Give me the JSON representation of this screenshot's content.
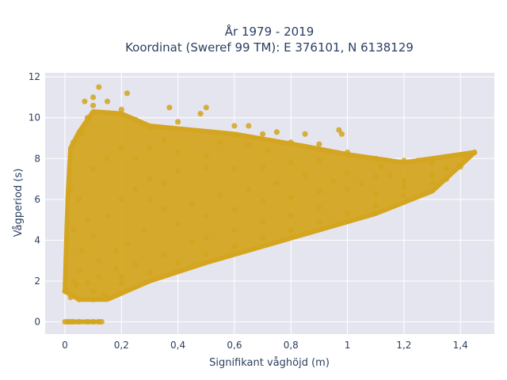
{
  "chart_data": {
    "type": "scatter",
    "title_line1": "År 1979 - 2019",
    "title_line2": "Koordinat (Sweref 99 TM): E 376101, N 6138129",
    "xlabel": "Signifikant våghöjd (m)",
    "ylabel": "Vågperiod (s)",
    "xlim": [
      -0.07,
      1.52
    ],
    "ylim": [
      -0.6,
      12.2
    ],
    "x_ticks": [
      0,
      0.2,
      0.4,
      0.6,
      0.8,
      1,
      1.2,
      1.4
    ],
    "x_tick_labels": [
      "0",
      "0,2",
      "0,4",
      "0,6",
      "0,8",
      "1",
      "1,2",
      "1,4"
    ],
    "y_ticks": [
      0,
      2,
      4,
      6,
      8,
      10,
      12
    ],
    "y_tick_labels": [
      "0",
      "2",
      "4",
      "6",
      "8",
      "10",
      "12"
    ],
    "grid": true,
    "legend": "none",
    "marker_color": "#d4a520",
    "plot_bg": "#e5e5ef",
    "series": [
      {
        "points": [
          [
            0.0,
            0.0
          ],
          [
            0.01,
            0.0
          ],
          [
            0.02,
            0.0
          ],
          [
            0.03,
            0.0
          ],
          [
            0.05,
            0.0
          ],
          [
            0.08,
            0.0
          ],
          [
            0.1,
            0.0
          ],
          [
            0.12,
            0.0
          ],
          [
            0.13,
            0.0
          ],
          [
            0.0,
            1.5
          ],
          [
            0.02,
            1.2
          ],
          [
            0.03,
            2.0
          ],
          [
            0.05,
            1.1
          ],
          [
            0.1,
            1.1
          ],
          [
            0.15,
            1.2
          ],
          [
            0.2,
            1.9
          ],
          [
            0.3,
            2.4
          ],
          [
            0.4,
            2.9
          ],
          [
            0.5,
            3.3
          ],
          [
            0.6,
            3.7
          ],
          [
            0.7,
            4.1
          ],
          [
            0.8,
            4.5
          ],
          [
            0.9,
            4.9
          ],
          [
            1.0,
            5.3
          ],
          [
            1.1,
            5.7
          ],
          [
            1.2,
            6.2
          ],
          [
            1.3,
            6.8
          ],
          [
            1.4,
            7.6
          ],
          [
            1.45,
            8.3
          ],
          [
            1.42,
            8.1
          ],
          [
            1.35,
            7.5
          ],
          [
            1.3,
            7.8
          ],
          [
            1.2,
            7.9
          ],
          [
            1.1,
            8.0
          ],
          [
            1.0,
            8.3
          ],
          [
            0.9,
            8.7
          ],
          [
            0.8,
            8.8
          ],
          [
            0.7,
            9.2
          ],
          [
            0.6,
            9.6
          ],
          [
            0.5,
            10.5
          ],
          [
            0.4,
            9.8
          ],
          [
            0.35,
            8.9
          ],
          [
            0.3,
            9.5
          ],
          [
            0.25,
            9.9
          ],
          [
            0.2,
            10.4
          ],
          [
            0.15,
            10.8
          ],
          [
            0.1,
            10.6
          ],
          [
            0.12,
            11.5
          ],
          [
            0.08,
            10.0
          ],
          [
            0.06,
            9.2
          ],
          [
            0.03,
            8.8
          ],
          [
            0.02,
            6.5
          ],
          [
            0.03,
            4.5
          ],
          [
            0.07,
            10.8
          ],
          [
            0.1,
            11.0
          ],
          [
            0.22,
            11.2
          ],
          [
            0.37,
            10.5
          ],
          [
            0.48,
            10.2
          ],
          [
            0.65,
            9.6
          ],
          [
            0.75,
            9.3
          ],
          [
            0.85,
            9.2
          ],
          [
            0.97,
            9.4
          ],
          [
            0.98,
            9.2
          ],
          [
            1.12,
            7.6
          ],
          [
            1.25,
            7.9
          ],
          [
            1.15,
            7.2
          ],
          [
            1.05,
            6.8
          ],
          [
            0.95,
            6.9
          ],
          [
            0.85,
            7.2
          ],
          [
            0.9,
            5.6
          ],
          [
            0.8,
            5.2
          ],
          [
            0.7,
            4.9
          ],
          [
            0.6,
            4.5
          ],
          [
            0.5,
            4.1
          ],
          [
            0.45,
            3.9
          ],
          [
            0.35,
            3.3
          ],
          [
            0.25,
            2.8
          ],
          [
            0.18,
            2.6
          ],
          [
            0.12,
            2.2
          ],
          [
            0.08,
            1.9
          ],
          [
            0.05,
            2.5
          ],
          [
            0.06,
            3.5
          ],
          [
            0.1,
            4.2
          ],
          [
            0.15,
            5.2
          ],
          [
            0.2,
            6.0
          ],
          [
            0.25,
            6.5
          ],
          [
            0.3,
            7.0
          ],
          [
            0.4,
            7.4
          ],
          [
            0.5,
            7.6
          ],
          [
            0.6,
            7.5
          ],
          [
            0.7,
            7.6
          ],
          [
            0.8,
            7.8
          ],
          [
            0.9,
            7.9
          ],
          [
            1.0,
            7.3
          ],
          [
            1.1,
            7.1
          ],
          [
            1.2,
            6.9
          ],
          [
            1.3,
            7.2
          ],
          [
            1.35,
            7.0
          ],
          [
            0.55,
            6.2
          ],
          [
            0.65,
            6.5
          ],
          [
            0.75,
            6.8
          ],
          [
            0.45,
            5.8
          ],
          [
            0.35,
            5.5
          ],
          [
            0.28,
            4.5
          ],
          [
            0.22,
            3.8
          ],
          [
            0.4,
            4.8
          ],
          [
            0.5,
            5.2
          ],
          [
            0.6,
            5.5
          ],
          [
            0.7,
            5.9
          ],
          [
            0.8,
            6.1
          ],
          [
            0.9,
            6.4
          ],
          [
            1.0,
            6.5
          ],
          [
            1.1,
            6.3
          ],
          [
            1.2,
            6.6
          ],
          [
            0.15,
            8.0
          ],
          [
            0.2,
            8.5
          ],
          [
            0.25,
            8.0
          ],
          [
            0.1,
            7.5
          ],
          [
            0.05,
            6.0
          ],
          [
            0.08,
            5.0
          ],
          [
            0.3,
            8.5
          ],
          [
            0.4,
            8.3
          ],
          [
            0.5,
            8.1
          ],
          [
            0.55,
            8.8
          ],
          [
            0.65,
            8.7
          ],
          [
            0.72,
            8.4
          ],
          [
            0.3,
            6.0
          ],
          [
            0.35,
            6.8
          ],
          [
            0.12,
            3.0
          ],
          [
            0.18,
            3.5
          ],
          [
            0.1,
            1.5
          ],
          [
            0.14,
            1.3
          ],
          [
            0.04,
            1.8
          ],
          [
            0.2,
            2.2
          ]
        ]
      }
    ]
  }
}
